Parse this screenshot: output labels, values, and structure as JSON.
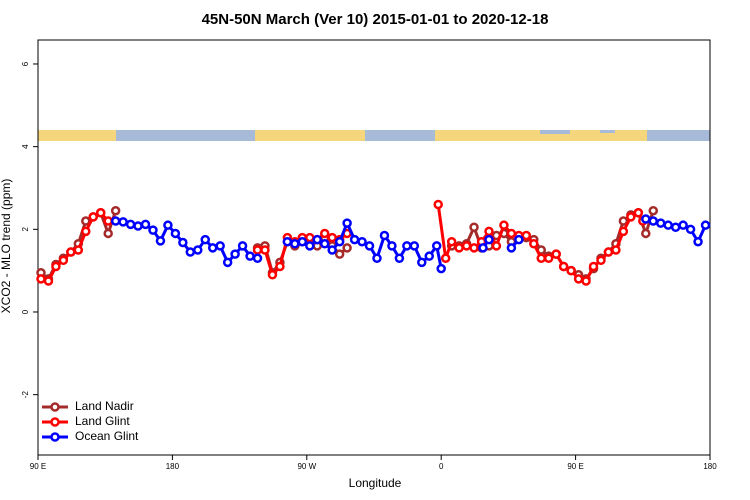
{
  "chart_data": {
    "type": "line",
    "title": "45N-50N March (Ver 10)   2015-01-01 to 2020-12-18",
    "x_label": "Longitude",
    "y_label": "XCO2 - MLO trend (ppm)",
    "xlim": [
      90,
      540
    ],
    "ylim": [
      -3.46,
      6.58
    ],
    "xticks": [
      {
        "value": 90,
        "label": "90 E"
      },
      180,
      {
        "value": 270,
        "label": "90 W"
      },
      {
        "value": 360,
        "label": "0"
      },
      {
        "value": 450,
        "label": "90 E"
      },
      {
        "value": 540,
        "label": "180"
      }
    ],
    "yticks": [
      -2,
      0,
      2,
      4,
      6
    ],
    "legend": "bottom-left",
    "series": [
      {
        "name": "Land Nadir",
        "color": "#a52a2a",
        "x": [
          92,
          97,
          102,
          107,
          112,
          117,
          122,
          127,
          132,
          137,
          142,
          190,
          237,
          242,
          247,
          252,
          257,
          262,
          267,
          272,
          277,
          282,
          287,
          292,
          297,
          330,
          367,
          372,
          377,
          382,
          387,
          392,
          397,
          402,
          407,
          412,
          417,
          422,
          427,
          432,
          437,
          442,
          447,
          452,
          457,
          462,
          467,
          472,
          477,
          482,
          487,
          492,
          497,
          502
        ],
        "values": [
          0.95,
          0.8,
          1.15,
          1.3,
          1.45,
          1.65,
          2.2,
          2.3,
          2.4,
          1.9,
          2.45,
          null,
          1.55,
          1.6,
          0.95,
          1.2,
          1.7,
          1.6,
          1.7,
          1.75,
          1.6,
          1.8,
          1.6,
          1.4,
          1.55,
          null,
          1.6,
          1.6,
          1.65,
          2.05,
          1.55,
          1.6,
          1.85,
          1.9,
          1.7,
          1.8,
          1.8,
          1.75,
          1.5,
          1.35,
          1.4,
          1.1,
          1.0,
          0.9,
          0.8,
          1.05,
          1.3,
          1.45,
          1.65,
          2.2,
          2.35,
          2.4,
          1.9,
          2.45
        ]
      },
      {
        "name": "Land Glint",
        "color": "#ff0000",
        "x": [
          92,
          97,
          102,
          107,
          112,
          117,
          122,
          127,
          132,
          137,
          190,
          237,
          242,
          247,
          252,
          257,
          262,
          267,
          272,
          277,
          282,
          287,
          292,
          297,
          330,
          358,
          363,
          367,
          372,
          377,
          382,
          387,
          392,
          397,
          402,
          407,
          412,
          417,
          422,
          427,
          432,
          437,
          442,
          447,
          452,
          457,
          462,
          467,
          472,
          477,
          482,
          487,
          492,
          495
        ],
        "values": [
          0.8,
          0.75,
          1.1,
          1.25,
          1.45,
          1.5,
          1.95,
          2.3,
          2.4,
          2.2,
          null,
          1.5,
          1.5,
          0.9,
          1.1,
          1.8,
          1.7,
          1.8,
          1.8,
          1.75,
          1.9,
          1.8,
          1.75,
          1.9,
          null,
          2.6,
          1.3,
          1.7,
          1.55,
          1.6,
          1.55,
          1.7,
          1.95,
          1.6,
          2.1,
          1.9,
          1.85,
          1.85,
          1.65,
          1.3,
          1.3,
          1.4,
          1.1,
          1.0,
          0.8,
          0.75,
          1.1,
          1.25,
          1.45,
          1.5,
          1.95,
          2.3,
          2.4,
          2.2
        ]
      },
      {
        "name": "Ocean Glint",
        "color": "#0000ff",
        "x": [
          142,
          147,
          152,
          157,
          162,
          167,
          172,
          177,
          182,
          187,
          192,
          197,
          202,
          207,
          212,
          217,
          222,
          227,
          232,
          237,
          247,
          257,
          262,
          267,
          272,
          277,
          282,
          287,
          292,
          297,
          302,
          307,
          312,
          317,
          322,
          327,
          332,
          337,
          342,
          347,
          352,
          357,
          360,
          374,
          388,
          392,
          400,
          407,
          412,
          450,
          497,
          502,
          507,
          512,
          517,
          522,
          527,
          532,
          537
        ],
        "values": [
          2.2,
          2.18,
          2.12,
          2.08,
          2.12,
          1.98,
          1.72,
          2.1,
          1.9,
          1.68,
          1.45,
          1.5,
          1.75,
          1.55,
          1.6,
          1.2,
          1.4,
          1.6,
          1.35,
          1.3,
          null,
          1.7,
          1.65,
          1.7,
          1.6,
          1.75,
          1.65,
          1.5,
          1.7,
          2.15,
          1.75,
          1.7,
          1.6,
          1.3,
          1.85,
          1.6,
          1.3,
          1.6,
          1.6,
          1.2,
          1.35,
          1.6,
          1.05,
          null,
          1.55,
          1.75,
          null,
          1.55,
          1.75,
          null,
          2.25,
          2.2,
          2.15,
          2.1,
          2.05,
          2.1,
          2.0,
          1.7,
          2.1
        ]
      }
    ]
  }
}
